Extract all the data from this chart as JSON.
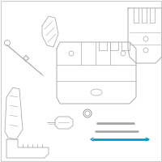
{
  "bg_color": "#ffffff",
  "border_color": "#cccccc",
  "lc": "#aaaaaa",
  "dc": "#888888",
  "hc": "#009fc0",
  "fig_size": [
    2.0,
    2.0
  ],
  "dpi": 100
}
